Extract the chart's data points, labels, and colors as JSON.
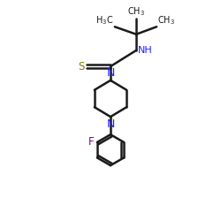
{
  "background_color": "#ffffff",
  "bond_color": "#1a1a1a",
  "nitrogen_color": "#2020ff",
  "fluorine_color": "#8b008b",
  "sulfur_color": "#808000",
  "text_color": "#1a1a1a",
  "figsize": [
    2.5,
    2.5
  ],
  "dpi": 100,
  "xlim": [
    0,
    10
  ],
  "ylim": [
    0,
    10
  ]
}
